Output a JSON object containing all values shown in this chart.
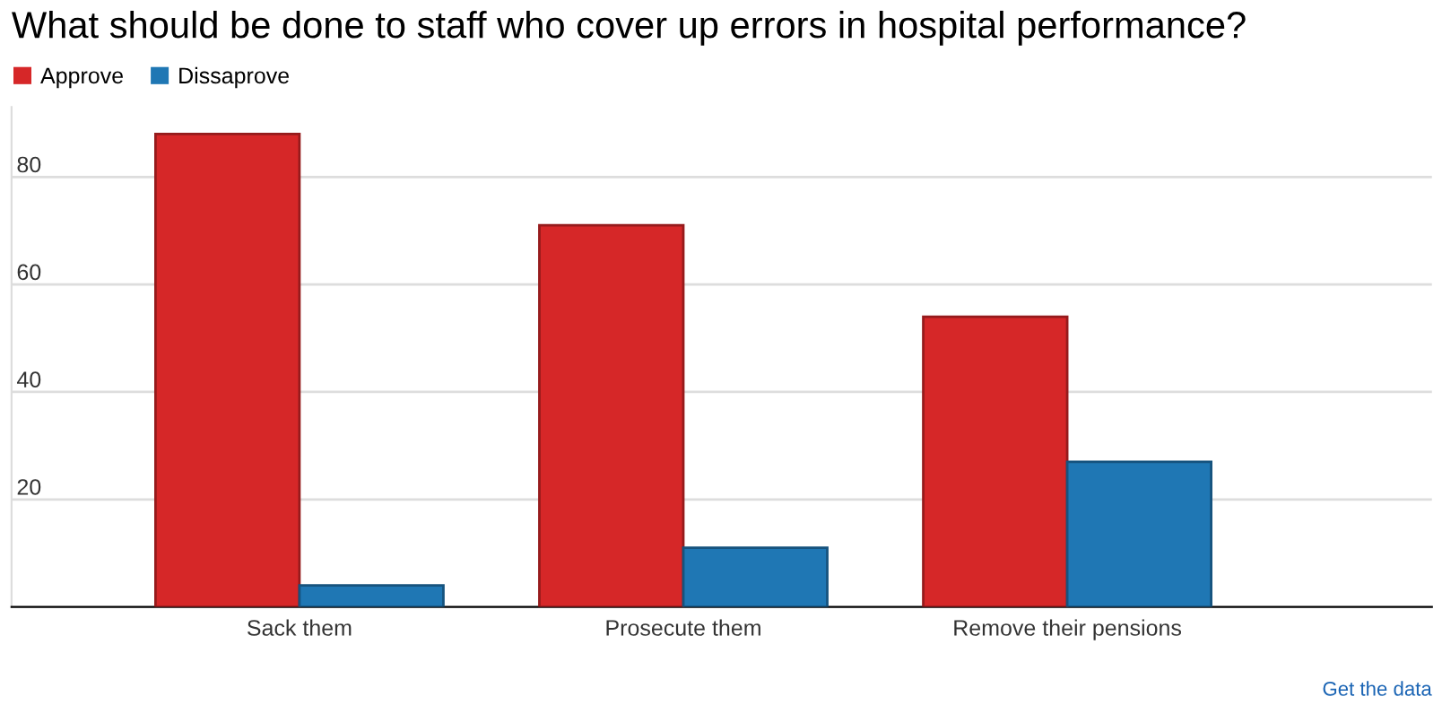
{
  "chart_data": {
    "type": "bar",
    "title": "What should be done to staff who cover up errors in hospital performance?",
    "categories": [
      "Sack them",
      "Prosecute them",
      "Remove their pensions"
    ],
    "series": [
      {
        "name": "Approve",
        "color": "#d62728",
        "values": [
          88,
          71,
          54
        ]
      },
      {
        "name": "Dissaprove",
        "color": "#1f77b4",
        "values": [
          4,
          11,
          27
        ]
      }
    ],
    "ylim": [
      0,
      93
    ],
    "yticks": [
      20,
      40,
      60,
      80
    ],
    "grid": "y",
    "legend": "top left",
    "annotations": [
      "Get the data"
    ]
  }
}
